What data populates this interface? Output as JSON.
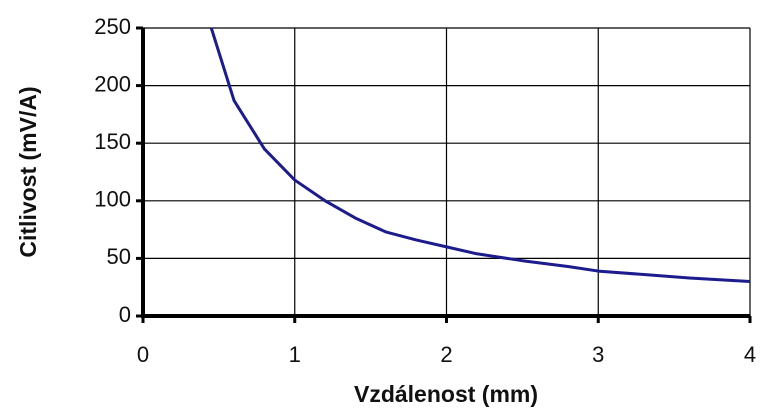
{
  "chart_data": {
    "type": "line",
    "xlabel": "Vzdálenost (mm)",
    "ylabel": "Citlivost (mV/A)",
    "x": [
      0.45,
      0.6,
      0.8,
      1.0,
      1.2,
      1.4,
      1.6,
      1.8,
      2.0,
      2.2,
      2.5,
      2.8,
      3.0,
      3.3,
      3.6,
      4.0
    ],
    "values": [
      250,
      187,
      145,
      118,
      100,
      85,
      73,
      66,
      60,
      54,
      48,
      43,
      39,
      36,
      33,
      30
    ],
    "color": "#1c1c8f",
    "xlim": [
      0,
      4
    ],
    "xticks": [
      0,
      1,
      2,
      3,
      4
    ],
    "ylim": [
      0,
      250
    ],
    "yticks": [
      0,
      50,
      100,
      150,
      200,
      250
    ],
    "grid": true
  }
}
